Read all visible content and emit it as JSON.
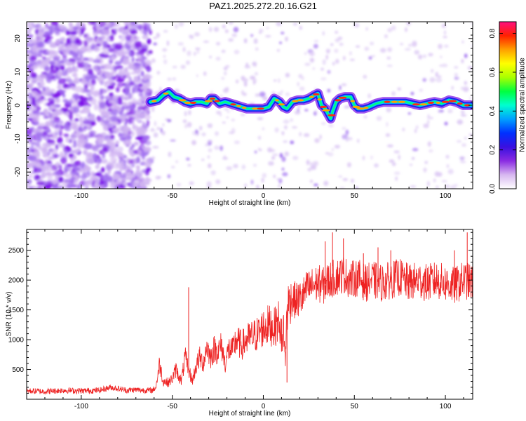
{
  "title": "PAZ1.2025.272.20.16.G21",
  "chart_data": [
    {
      "type": "heatmap",
      "title": "PAZ1.2025.272.20.16.G21",
      "xlabel": "Height of straight line (km)",
      "ylabel": "Frequency (Hz)",
      "xlim": [
        -130,
        115
      ],
      "ylim": [
        -25,
        25
      ],
      "xticks": [
        -100,
        -50,
        0,
        50,
        100
      ],
      "yticks": [
        -20,
        -10,
        0,
        10,
        20
      ],
      "colorbar": {
        "label": "Normalized spectral amplitude",
        "range": [
          0,
          0.86
        ],
        "ticks": [
          0.0,
          0.2,
          0.4,
          0.6,
          0.8
        ],
        "colors": [
          "#ffffff",
          "#d8b8f0",
          "#8a2be2",
          "#3a10e0",
          "#0030ff",
          "#00a0ff",
          "#00ffd0",
          "#00ff40",
          "#aaff00",
          "#ffff00",
          "#ffa000",
          "#ff2000",
          "#ff1080"
        ]
      },
      "ridge": {
        "description": "dominant frequency track",
        "x": [
          -62,
          -58,
          -55,
          -52,
          -49,
          -46,
          -43,
          -40,
          -37,
          -34,
          -31,
          -29,
          -27,
          -24,
          -21,
          -18,
          -15,
          -12,
          -9,
          -6,
          -3,
          0,
          3,
          6,
          9,
          11,
          13,
          16,
          19,
          22,
          25,
          28,
          30,
          32,
          34,
          35,
          36,
          37,
          38,
          40,
          42,
          45,
          48,
          50,
          52,
          55,
          58,
          62,
          66,
          70,
          74,
          78,
          82,
          86,
          90,
          94,
          98,
          102,
          106,
          110,
          114
        ],
        "y": [
          1,
          1.5,
          3,
          4,
          2.5,
          2,
          1,
          0.5,
          1,
          1,
          0.5,
          2,
          2,
          0.5,
          1,
          0.5,
          0,
          -0.5,
          -1,
          -1,
          -1,
          -1,
          -0.5,
          2,
          1,
          -0.5,
          -1,
          1,
          1.5,
          1.5,
          2,
          3,
          3.5,
          0,
          -1,
          -2,
          -3,
          -4,
          -2,
          1,
          2,
          2.5,
          2.5,
          0,
          -1,
          -1,
          -0.5,
          0.5,
          1,
          1,
          1,
          1,
          0.5,
          0,
          0.5,
          1,
          0.5,
          1.5,
          1,
          0,
          0
        ]
      }
    },
    {
      "type": "line",
      "xlabel": "Height of straight line (km)",
      "ylabel": "SNR (10 * v/v)",
      "xlim": [
        -130,
        115
      ],
      "ylim": [
        0,
        2850
      ],
      "xticks": [
        -100,
        -50,
        0,
        50,
        100
      ],
      "yticks": [
        500,
        1000,
        1500,
        2000,
        2500
      ],
      "series": [
        {
          "name": "SNR",
          "color": "#ee2222",
          "x": [
            -130,
            -120,
            -110,
            -100,
            -90,
            -84,
            -80,
            -75,
            -70,
            -65,
            -61,
            -59,
            -57,
            -55,
            -52,
            -50,
            -48,
            -45,
            -43,
            -41,
            -39,
            -37,
            -35,
            -33,
            -31,
            -29,
            -27,
            -25,
            -23,
            -21,
            -19,
            -17,
            -15,
            -12,
            -9,
            -6,
            -3,
            0,
            3,
            6,
            9,
            10,
            11,
            12,
            13,
            15,
            18,
            21,
            24,
            27,
            30,
            33,
            36,
            40,
            44,
            48,
            52,
            56,
            60,
            65,
            70,
            75,
            80,
            85,
            90,
            95,
            100,
            105,
            110,
            115
          ],
          "y": [
            140,
            130,
            150,
            140,
            150,
            200,
            180,
            150,
            160,
            150,
            150,
            200,
            600,
            300,
            280,
            350,
            500,
            300,
            700,
            500,
            300,
            550,
            700,
            600,
            900,
            700,
            850,
            800,
            900,
            600,
            850,
            800,
            1000,
            900,
            1000,
            1050,
            1100,
            1200,
            1250,
            1200,
            1350,
            800,
            1300,
            600,
            1500,
            1700,
            1650,
            1700,
            1850,
            1900,
            1950,
            1900,
            2000,
            2050,
            2100,
            2000,
            2050,
            1950,
            2000,
            1950,
            2000,
            2050,
            1950,
            2000,
            1950,
            2000,
            1950,
            1900,
            2000,
            1950
          ]
        }
      ],
      "spikes": {
        "x": [
          -41,
          10,
          13,
          34,
          38,
          44,
          55,
          63,
          70,
          105,
          112
        ],
        "y": [
          1880,
          1350,
          280,
          2650,
          2800,
          2700,
          2450,
          2550,
          2500,
          2500,
          2800
        ]
      }
    }
  ]
}
